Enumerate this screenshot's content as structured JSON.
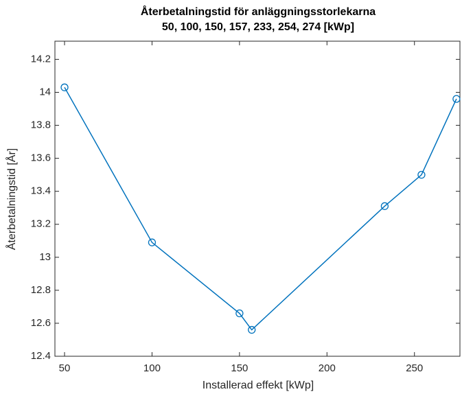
{
  "chart_data": {
    "type": "line",
    "title": [
      "Återbetalningstid för anläggningsstorlekarna",
      "50, 100, 150, 157, 233, 254, 274 [kWp]"
    ],
    "x_label": "Installerad effekt [kWp]",
    "y_label": "Återbetalningstid [År]",
    "x": [
      50,
      100,
      150,
      157,
      233,
      254,
      274
    ],
    "series": [
      {
        "color": "#0072bd",
        "values": [
          14.03,
          13.09,
          12.66,
          12.56,
          13.31,
          13.5,
          13.96
        ]
      }
    ],
    "xlim": [
      44.5,
      276
    ],
    "ylim": [
      12.4,
      14.31
    ],
    "xticks": [
      50,
      100,
      150,
      200,
      250
    ],
    "yticks": [
      12.4,
      12.6,
      12.8,
      13,
      13.2,
      13.4,
      13.6,
      13.8,
      14,
      14.2
    ],
    "grid": false
  }
}
